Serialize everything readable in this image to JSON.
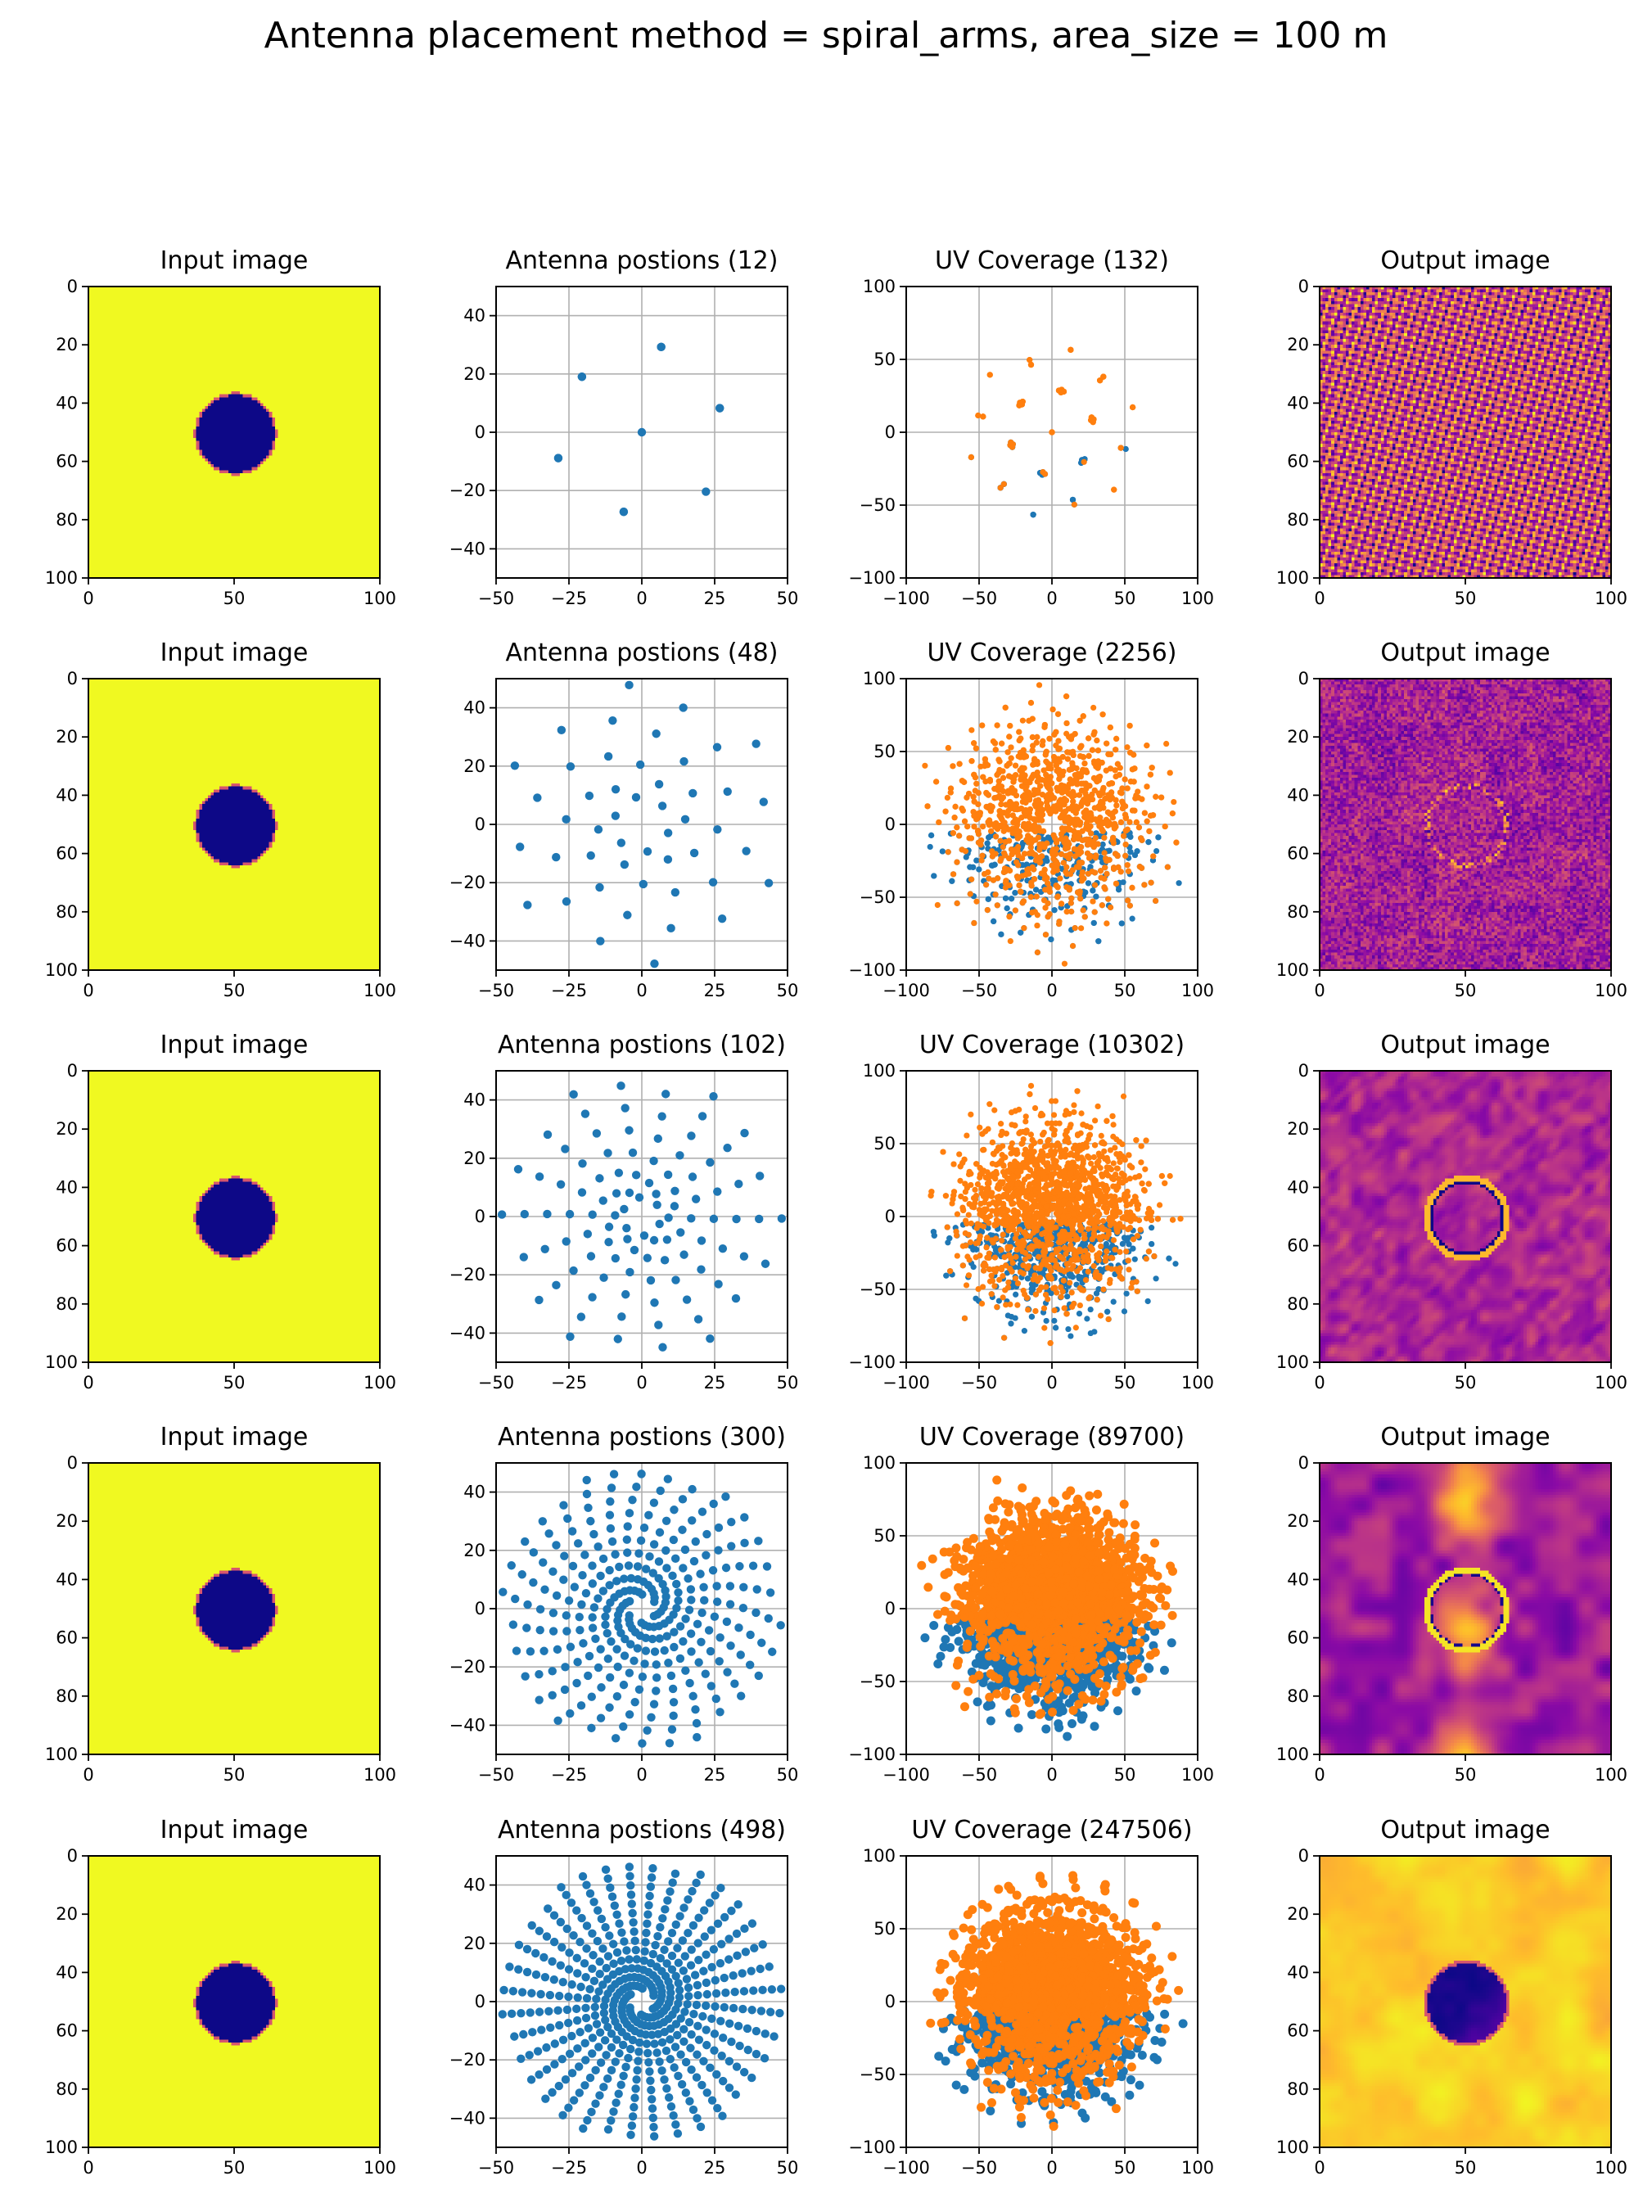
{
  "figure": {
    "title": "Antenna placement method = spiral_arms, area_size = 100 m"
  },
  "colors": {
    "input_background": "#f0f921",
    "input_disk": "#2b0f8f",
    "series_blue": "#1f77b4",
    "series_orange": "#ff7f0e",
    "grid": "#b0b0b0"
  },
  "chart_data": [
    {
      "row": 1,
      "panels": [
        {
          "type": "heatmap",
          "title": "Input image",
          "xlim": [
            0,
            100
          ],
          "ylim": [
            100,
            0
          ],
          "xticks": [
            "0",
            "50",
            "100"
          ],
          "yticks": [
            "0",
            "20",
            "40",
            "60",
            "80",
            "100"
          ],
          "content": "disk",
          "disk_center": [
            50,
            50
          ],
          "disk_radius": 14,
          "colormap": "plasma"
        },
        {
          "type": "scatter",
          "title": "Antenna postions (12)",
          "count": 12,
          "arms": 6,
          "xlim": [
            -50,
            50
          ],
          "ylim": [
            -50,
            50
          ],
          "grid": true,
          "xticks": [
            "−50",
            "−25",
            "0",
            "25",
            "50"
          ],
          "yticks": [
            "−40",
            "−20",
            "0",
            "20",
            "40"
          ],
          "series": [
            {
              "color": "#1f77b4"
            }
          ]
        },
        {
          "type": "scatter",
          "title": "UV Coverage (132)",
          "count": 132,
          "xlim": [
            -100,
            100
          ],
          "ylim": [
            -100,
            100
          ],
          "grid": true,
          "xticks": [
            "−100",
            "−50",
            "0",
            "50",
            "100"
          ],
          "yticks": [
            "−100",
            "−50",
            "0",
            "50",
            "100"
          ],
          "series": [
            {
              "color": "#1f77b4"
            },
            {
              "color": "#ff7f0e"
            }
          ]
        },
        {
          "type": "heatmap",
          "title": "Output image",
          "xlim": [
            0,
            100
          ],
          "ylim": [
            100,
            0
          ],
          "xticks": [
            "0",
            "50",
            "100"
          ],
          "yticks": [
            "0",
            "20",
            "40",
            "60",
            "80",
            "100"
          ],
          "content": "fringes",
          "colormap": "plasma"
        }
      ]
    },
    {
      "row": 2,
      "panels": [
        {
          "type": "heatmap",
          "title": "Input image",
          "xlim": [
            0,
            100
          ],
          "ylim": [
            100,
            0
          ],
          "xticks": [
            "0",
            "50",
            "100"
          ],
          "yticks": [
            "0",
            "20",
            "40",
            "60",
            "80",
            "100"
          ],
          "content": "disk",
          "disk_center": [
            50,
            50
          ],
          "disk_radius": 14,
          "colormap": "plasma"
        },
        {
          "type": "scatter",
          "title": "Antenna postions (48)",
          "count": 48,
          "arms": 6,
          "xlim": [
            -50,
            50
          ],
          "ylim": [
            -50,
            50
          ],
          "grid": true,
          "xticks": [
            "−50",
            "−25",
            "0",
            "25",
            "50"
          ],
          "yticks": [
            "−40",
            "−20",
            "0",
            "20",
            "40"
          ],
          "series": [
            {
              "color": "#1f77b4"
            }
          ]
        },
        {
          "type": "scatter",
          "title": "UV Coverage (2256)",
          "count": 2256,
          "xlim": [
            -100,
            100
          ],
          "ylim": [
            -100,
            100
          ],
          "grid": true,
          "xticks": [
            "−100",
            "−50",
            "0",
            "50",
            "100"
          ],
          "yticks": [
            "−100",
            "−50",
            "0",
            "50",
            "100"
          ],
          "series": [
            {
              "color": "#1f77b4"
            },
            {
              "color": "#ff7f0e"
            }
          ]
        },
        {
          "type": "heatmap",
          "title": "Output image",
          "xlim": [
            0,
            100
          ],
          "ylim": [
            100,
            0
          ],
          "xticks": [
            "0",
            "50",
            "100"
          ],
          "yticks": [
            "0",
            "20",
            "40",
            "60",
            "80",
            "100"
          ],
          "content": "noisy_ring",
          "colormap": "plasma"
        }
      ]
    },
    {
      "row": 3,
      "panels": [
        {
          "type": "heatmap",
          "title": "Input image",
          "xlim": [
            0,
            100
          ],
          "ylim": [
            100,
            0
          ],
          "xticks": [
            "0",
            "50",
            "100"
          ],
          "yticks": [
            "0",
            "20",
            "40",
            "60",
            "80",
            "100"
          ],
          "content": "disk",
          "disk_center": [
            50,
            50
          ],
          "disk_radius": 14,
          "colormap": "plasma"
        },
        {
          "type": "scatter",
          "title": "Antenna postions (102)",
          "count": 102,
          "arms": 6,
          "xlim": [
            -50,
            50
          ],
          "ylim": [
            -50,
            50
          ],
          "grid": true,
          "xticks": [
            "−50",
            "−25",
            "0",
            "25",
            "50"
          ],
          "yticks": [
            "−40",
            "−20",
            "0",
            "20",
            "40"
          ],
          "series": [
            {
              "color": "#1f77b4"
            }
          ]
        },
        {
          "type": "scatter",
          "title": "UV Coverage (10302)",
          "count": 10302,
          "xlim": [
            -100,
            100
          ],
          "ylim": [
            -100,
            100
          ],
          "grid": true,
          "xticks": [
            "−100",
            "−50",
            "0",
            "50",
            "100"
          ],
          "yticks": [
            "−100",
            "−50",
            "0",
            "50",
            "100"
          ],
          "series": [
            {
              "color": "#1f77b4"
            },
            {
              "color": "#ff7f0e"
            }
          ]
        },
        {
          "type": "heatmap",
          "title": "Output image",
          "xlim": [
            0,
            100
          ],
          "ylim": [
            100,
            0
          ],
          "xticks": [
            "0",
            "50",
            "100"
          ],
          "yticks": [
            "0",
            "20",
            "40",
            "60",
            "80",
            "100"
          ],
          "content": "ring",
          "colormap": "plasma"
        }
      ]
    },
    {
      "row": 4,
      "panels": [
        {
          "type": "heatmap",
          "title": "Input image",
          "xlim": [
            0,
            100
          ],
          "ylim": [
            100,
            0
          ],
          "xticks": [
            "0",
            "50",
            "100"
          ],
          "yticks": [
            "0",
            "20",
            "40",
            "60",
            "80",
            "100"
          ],
          "content": "disk",
          "disk_center": [
            50,
            50
          ],
          "disk_radius": 14,
          "colormap": "plasma"
        },
        {
          "type": "scatter",
          "title": "Antenna postions (300)",
          "count": 300,
          "arms": 6,
          "xlim": [
            -50,
            50
          ],
          "ylim": [
            -50,
            50
          ],
          "grid": true,
          "xticks": [
            "−50",
            "−25",
            "0",
            "25",
            "50"
          ],
          "yticks": [
            "−40",
            "−20",
            "0",
            "20",
            "40"
          ],
          "series": [
            {
              "color": "#1f77b4"
            }
          ]
        },
        {
          "type": "scatter",
          "title": "UV Coverage (89700)",
          "count": 89700,
          "xlim": [
            -100,
            100
          ],
          "ylim": [
            -100,
            100
          ],
          "grid": true,
          "xticks": [
            "−100",
            "−50",
            "0",
            "50",
            "100"
          ],
          "yticks": [
            "−100",
            "−50",
            "0",
            "50",
            "100"
          ],
          "series": [
            {
              "color": "#1f77b4"
            },
            {
              "color": "#ff7f0e"
            }
          ]
        },
        {
          "type": "heatmap",
          "title": "Output image",
          "xlim": [
            0,
            100
          ],
          "ylim": [
            100,
            0
          ],
          "xticks": [
            "0",
            "50",
            "100"
          ],
          "yticks": [
            "0",
            "20",
            "40",
            "60",
            "80",
            "100"
          ],
          "content": "ring_blobs",
          "colormap": "plasma"
        }
      ]
    },
    {
      "row": 5,
      "panels": [
        {
          "type": "heatmap",
          "title": "Input image",
          "xlim": [
            0,
            100
          ],
          "ylim": [
            100,
            0
          ],
          "xticks": [
            "0",
            "50",
            "100"
          ],
          "yticks": [
            "0",
            "20",
            "40",
            "60",
            "80",
            "100"
          ],
          "content": "disk",
          "disk_center": [
            50,
            50
          ],
          "disk_radius": 14,
          "colormap": "plasma"
        },
        {
          "type": "scatter",
          "title": "Antenna postions (498)",
          "count": 498,
          "arms": 6,
          "xlim": [
            -50,
            50
          ],
          "ylim": [
            -50,
            50
          ],
          "grid": true,
          "xticks": [
            "−50",
            "−25",
            "0",
            "25",
            "50"
          ],
          "yticks": [
            "−40",
            "−20",
            "0",
            "20",
            "40"
          ],
          "series": [
            {
              "color": "#1f77b4"
            }
          ]
        },
        {
          "type": "scatter",
          "title": "UV Coverage (247506)",
          "count": 247506,
          "xlim": [
            -100,
            100
          ],
          "ylim": [
            -100,
            100
          ],
          "grid": true,
          "xticks": [
            "−100",
            "−50",
            "0",
            "50",
            "100"
          ],
          "yticks": [
            "−100",
            "−50",
            "0",
            "50",
            "100"
          ],
          "series": [
            {
              "color": "#1f77b4"
            },
            {
              "color": "#ff7f0e"
            }
          ]
        },
        {
          "type": "heatmap",
          "title": "Output image",
          "xlim": [
            0,
            100
          ],
          "ylim": [
            100,
            0
          ],
          "xticks": [
            "0",
            "50",
            "100"
          ],
          "yticks": [
            "0",
            "20",
            "40",
            "60",
            "80",
            "100"
          ],
          "content": "disk_recovered",
          "colormap": "plasma"
        }
      ]
    }
  ]
}
